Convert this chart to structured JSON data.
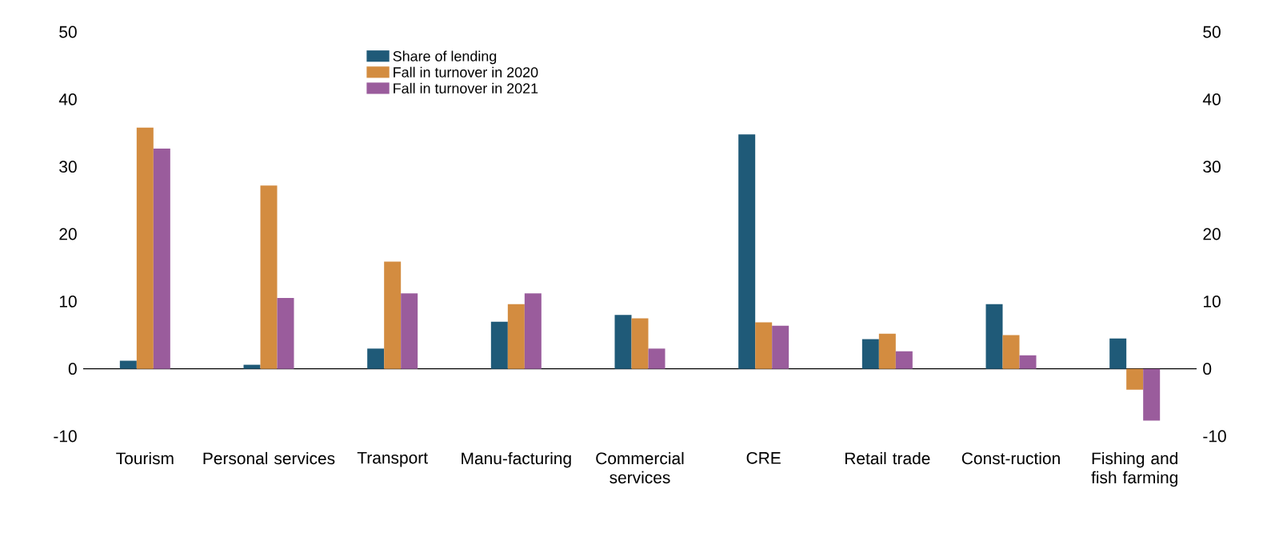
{
  "chart_data": {
    "type": "bar",
    "categories": [
      "Tourism",
      "Personal services",
      "Transport",
      "Manu-facturing",
      "Commercial services",
      "CRE",
      "Retail trade",
      "Const-ruction",
      "Fishing and fish farming"
    ],
    "series": [
      {
        "name": "Share of lending",
        "color": "#1f5a78",
        "values": [
          1.2,
          0.6,
          3.0,
          7.0,
          8.0,
          34.8,
          4.4,
          9.6,
          4.5
        ]
      },
      {
        "name": "Fall in turnover in 2020",
        "color": "#d38c40",
        "values": [
          35.8,
          27.2,
          15.9,
          9.6,
          7.5,
          6.9,
          5.2,
          5.0,
          -3.1
        ]
      },
      {
        "name": "Fall in turnover in 2021",
        "color": "#9a5c9c",
        "values": [
          32.7,
          10.5,
          11.2,
          11.2,
          3.0,
          6.4,
          2.6,
          2.0,
          -7.7
        ]
      }
    ],
    "ylim": [
      -10,
      50
    ],
    "yticks": [
      -10,
      0,
      10,
      20,
      30,
      40,
      50
    ],
    "y2lim": [
      -10,
      50
    ],
    "y2ticks": [
      -10,
      0,
      10,
      20,
      30,
      40,
      50
    ],
    "ref_lines": [
      {
        "axis": "y",
        "value": 0,
        "color": "#000000"
      }
    ],
    "legend": "top left"
  }
}
